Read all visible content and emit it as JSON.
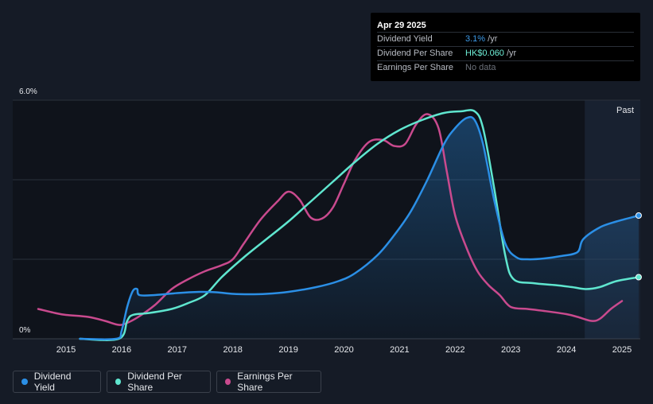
{
  "tooltip": {
    "date": "Apr 29 2025",
    "rows": [
      {
        "label": "Dividend Yield",
        "value": "3.1%",
        "unit": " /yr"
      },
      {
        "label": "Dividend Per Share",
        "value": "HK$0.060",
        "unit": " /yr"
      },
      {
        "label": "Earnings Per Share",
        "value": "No data",
        "unit": ""
      }
    ]
  },
  "past_label": "Past",
  "legend": [
    {
      "label": "Dividend Yield",
      "color": "#2b8fe6"
    },
    {
      "label": "Dividend Per Share",
      "color": "#5fe6cf"
    },
    {
      "label": "Earnings Per Share",
      "color": "#c94a8e"
    }
  ],
  "chart_data": {
    "type": "line",
    "x_ticks": [
      "2015",
      "2016",
      "2017",
      "2018",
      "2019",
      "2020",
      "2021",
      "2022",
      "2023",
      "2024",
      "2025"
    ],
    "y_tick_labels": [
      "6.0%",
      "0%"
    ],
    "ylim": [
      0,
      6.0
    ],
    "xlim": [
      2014.5,
      2025.3
    ],
    "past_region_start": 2024.33,
    "series": [
      {
        "name": "Dividend Yield",
        "color": "#2b8fe6",
        "unit": "%",
        "points": [
          [
            2015.25,
            0.0
          ],
          [
            2015.9,
            0.0
          ],
          [
            2016.0,
            0.2
          ],
          [
            2016.1,
            0.8
          ],
          [
            2016.2,
            1.2
          ],
          [
            2016.28,
            1.25
          ],
          [
            2016.32,
            1.1
          ],
          [
            2016.6,
            1.1
          ],
          [
            2017.0,
            1.15
          ],
          [
            2017.4,
            1.18
          ],
          [
            2017.7,
            1.17
          ],
          [
            2018.0,
            1.13
          ],
          [
            2018.3,
            1.12
          ],
          [
            2018.6,
            1.13
          ],
          [
            2019.0,
            1.18
          ],
          [
            2019.5,
            1.3
          ],
          [
            2019.9,
            1.45
          ],
          [
            2020.2,
            1.65
          ],
          [
            2020.6,
            2.1
          ],
          [
            2020.9,
            2.6
          ],
          [
            2021.2,
            3.2
          ],
          [
            2021.5,
            4.0
          ],
          [
            2021.8,
            4.9
          ],
          [
            2022.0,
            5.3
          ],
          [
            2022.2,
            5.55
          ],
          [
            2022.35,
            5.5
          ],
          [
            2022.5,
            4.9
          ],
          [
            2022.7,
            3.5
          ],
          [
            2022.9,
            2.4
          ],
          [
            2023.1,
            2.05
          ],
          [
            2023.3,
            2.0
          ],
          [
            2023.6,
            2.02
          ],
          [
            2023.9,
            2.08
          ],
          [
            2024.2,
            2.18
          ],
          [
            2024.3,
            2.5
          ],
          [
            2024.6,
            2.8
          ],
          [
            2024.9,
            2.95
          ],
          [
            2025.3,
            3.1
          ]
        ]
      },
      {
        "name": "Dividend Per Share",
        "color": "#5fe6cf",
        "unit": "HK$",
        "points": [
          [
            2015.25,
            0.0
          ],
          [
            2015.95,
            0.0
          ],
          [
            2016.1,
            0.45
          ],
          [
            2016.2,
            0.6
          ],
          [
            2016.5,
            0.65
          ],
          [
            2016.9,
            0.75
          ],
          [
            2017.2,
            0.9
          ],
          [
            2017.5,
            1.1
          ],
          [
            2017.8,
            1.55
          ],
          [
            2018.2,
            2.05
          ],
          [
            2018.6,
            2.5
          ],
          [
            2019.0,
            2.95
          ],
          [
            2019.4,
            3.45
          ],
          [
            2019.8,
            3.95
          ],
          [
            2020.2,
            4.45
          ],
          [
            2020.6,
            4.9
          ],
          [
            2021.0,
            5.25
          ],
          [
            2021.4,
            5.5
          ],
          [
            2021.8,
            5.68
          ],
          [
            2022.1,
            5.72
          ],
          [
            2022.35,
            5.72
          ],
          [
            2022.5,
            5.3
          ],
          [
            2022.7,
            3.8
          ],
          [
            2022.9,
            2.1
          ],
          [
            2023.05,
            1.5
          ],
          [
            2023.4,
            1.4
          ],
          [
            2023.8,
            1.35
          ],
          [
            2024.1,
            1.3
          ],
          [
            2024.35,
            1.25
          ],
          [
            2024.6,
            1.3
          ],
          [
            2024.9,
            1.45
          ],
          [
            2025.3,
            1.55
          ]
        ]
      },
      {
        "name": "Earnings Per Share",
        "color": "#c94a8e",
        "unit": "HK$",
        "points": [
          [
            2014.5,
            0.75
          ],
          [
            2014.8,
            0.65
          ],
          [
            2015.0,
            0.6
          ],
          [
            2015.4,
            0.55
          ],
          [
            2015.7,
            0.45
          ],
          [
            2015.95,
            0.35
          ],
          [
            2016.1,
            0.4
          ],
          [
            2016.3,
            0.55
          ],
          [
            2016.6,
            0.85
          ],
          [
            2016.9,
            1.25
          ],
          [
            2017.2,
            1.5
          ],
          [
            2017.5,
            1.7
          ],
          [
            2017.8,
            1.85
          ],
          [
            2018.0,
            2.0
          ],
          [
            2018.2,
            2.4
          ],
          [
            2018.5,
            3.0
          ],
          [
            2018.8,
            3.45
          ],
          [
            2019.0,
            3.7
          ],
          [
            2019.2,
            3.5
          ],
          [
            2019.4,
            3.05
          ],
          [
            2019.6,
            3.02
          ],
          [
            2019.8,
            3.3
          ],
          [
            2020.0,
            3.9
          ],
          [
            2020.2,
            4.5
          ],
          [
            2020.45,
            4.95
          ],
          [
            2020.7,
            5.0
          ],
          [
            2020.9,
            4.85
          ],
          [
            2021.1,
            4.9
          ],
          [
            2021.3,
            5.4
          ],
          [
            2021.5,
            5.65
          ],
          [
            2021.7,
            5.3
          ],
          [
            2021.85,
            4.2
          ],
          [
            2022.0,
            3.1
          ],
          [
            2022.2,
            2.3
          ],
          [
            2022.4,
            1.7
          ],
          [
            2022.6,
            1.35
          ],
          [
            2022.8,
            1.1
          ],
          [
            2023.0,
            0.8
          ],
          [
            2023.3,
            0.75
          ],
          [
            2023.6,
            0.7
          ],
          [
            2024.0,
            0.62
          ],
          [
            2024.2,
            0.55
          ],
          [
            2024.45,
            0.45
          ],
          [
            2024.6,
            0.5
          ],
          [
            2024.8,
            0.75
          ],
          [
            2025.0,
            0.95
          ]
        ]
      }
    ],
    "end_markers": [
      {
        "series": "Dividend Yield",
        "x": 2025.3,
        "y": 3.1
      },
      {
        "series": "Dividend Per Share",
        "x": 2025.3,
        "y": 1.55
      }
    ]
  }
}
